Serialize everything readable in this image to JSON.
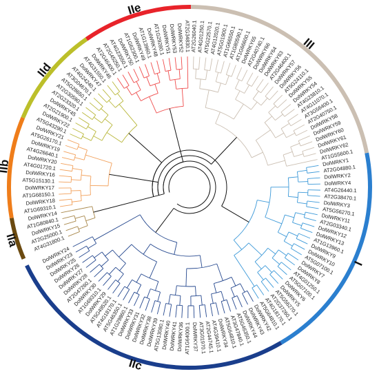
{
  "tree": {
    "groups": [
      {
        "id": "IIa",
        "label": "IIa",
        "arc_color": "#6b4a10",
        "branch_color": "#a8874a"
      },
      {
        "id": "IIb",
        "label": "IIb",
        "arc_color": "#ef7d1a",
        "branch_color": "#f2a05a"
      },
      {
        "id": "IId",
        "label": "IId",
        "arc_color": "#bcbf2a",
        "branch_color": "#b9b73a"
      },
      {
        "id": "IIe",
        "label": "IIe",
        "arc_color": "#e8232a",
        "branch_color": "#ef4a4a"
      },
      {
        "id": "III",
        "label": "III",
        "arc_color": "#cbbfb2",
        "branch_color": "#cbbfb2"
      },
      {
        "id": "I",
        "label": "I",
        "arc_color": "#2b7fcf",
        "branch_color": "#3a98d8"
      },
      {
        "id": "IIc",
        "label": "IIc",
        "arc_color": "#1a3e8c",
        "branch_color": "#24478e"
      }
    ],
    "leaves": [
      {
        "name": "AT4G31800.1",
        "group": "IIa"
      },
      {
        "name": "AT2G25000.1",
        "group": "IIa"
      },
      {
        "name": "DolWRKY15",
        "group": "IIa"
      },
      {
        "name": "AT1G80840.1",
        "group": "IIa"
      },
      {
        "name": "DolWRKY14",
        "group": "IIa"
      },
      {
        "name": "AT1G69310.1",
        "group": "IIb"
      },
      {
        "name": "DolWRKY18",
        "group": "IIb"
      },
      {
        "name": "AT1G68150.1",
        "group": "IIb"
      },
      {
        "name": "DolWRKY17",
        "group": "IIb"
      },
      {
        "name": "AT5G15130.1",
        "group": "IIb"
      },
      {
        "name": "DolWRKY16",
        "group": "IIb"
      },
      {
        "name": "AT4G01720.1",
        "group": "IIb"
      },
      {
        "name": "DolWRKY20",
        "group": "IIb"
      },
      {
        "name": "AT4G26640.1",
        "group": "IIb"
      },
      {
        "name": "DolWRKY19",
        "group": "IIb"
      },
      {
        "name": "AT5G26170.1",
        "group": "IIb"
      },
      {
        "name": "DolWRKY21",
        "group": "IIb"
      },
      {
        "name": "AT5G43290.1",
        "group": "IId"
      },
      {
        "name": "DolWRKY22",
        "group": "IId"
      },
      {
        "name": "AT2G21900.1",
        "group": "IId"
      },
      {
        "name": "DolWRKY45",
        "group": "IId"
      },
      {
        "name": "AT2G23320.1",
        "group": "IId"
      },
      {
        "name": "AT2G30590.1",
        "group": "IId"
      },
      {
        "name": "AT5G28650.1",
        "group": "IId"
      },
      {
        "name": "AT3G04670.1",
        "group": "IId"
      },
      {
        "name": "AT4G24240.1",
        "group": "IId"
      },
      {
        "name": "DolWRKY47",
        "group": "IId"
      },
      {
        "name": "AT4G31550.1",
        "group": "IId"
      },
      {
        "name": "DolWRKY46",
        "group": "IId"
      },
      {
        "name": "AT2G46400.1",
        "group": "IIe"
      },
      {
        "name": "AT2G45250.1",
        "group": "IIe"
      },
      {
        "name": "AT4G23550.1",
        "group": "IIe"
      },
      {
        "name": "DolWRKY50",
        "group": "IIe"
      },
      {
        "name": "AT1G62300.1",
        "group": "IIe"
      },
      {
        "name": "DolWRKY49",
        "group": "IIe"
      },
      {
        "name": "AT1G13960.1",
        "group": "IIe"
      },
      {
        "name": "DolWRKY48",
        "group": "IIe"
      },
      {
        "name": "AT1G29280.1",
        "group": "IIe"
      },
      {
        "name": "DolWRKY51",
        "group": "IIe"
      },
      {
        "name": "DolWRKY53",
        "group": "IIe"
      },
      {
        "name": "DolWRKY52",
        "group": "IIe"
      },
      {
        "name": "AT2G34830.1",
        "group": "IIe"
      },
      {
        "name": "AT2G26040.1",
        "group": "III"
      },
      {
        "name": "AT4G01250.1",
        "group": "III"
      },
      {
        "name": "AT5G22570.1",
        "group": "III"
      },
      {
        "name": "AT4G12020.1",
        "group": "III"
      },
      {
        "name": "AT5G01900.1",
        "group": "III"
      },
      {
        "name": "AT1G66550.1",
        "group": "III"
      },
      {
        "name": "AT1G80590.1",
        "group": "III"
      },
      {
        "name": "AT1G66600.1",
        "group": "III"
      },
      {
        "name": "DolWRKY65",
        "group": "III"
      },
      {
        "name": "AT2G40740.1",
        "group": "III"
      },
      {
        "name": "DolWRKY66",
        "group": "III"
      },
      {
        "name": "DolWRKY64",
        "group": "III"
      },
      {
        "name": "DolWRKY63",
        "group": "III"
      },
      {
        "name": "AT2G46400.1",
        "group": "III"
      },
      {
        "name": "DolWRKY57",
        "group": "III"
      },
      {
        "name": "DolWRKY56",
        "group": "III"
      },
      {
        "name": "AT5G24110.1",
        "group": "III"
      },
      {
        "name": "DolWRKY55",
        "group": "III"
      },
      {
        "name": "DolWRKY54",
        "group": "III"
      },
      {
        "name": "AT4G23810.1",
        "group": "III"
      },
      {
        "name": "AT4G11070.1",
        "group": "III"
      },
      {
        "name": "AT3G56400.1",
        "group": "III"
      },
      {
        "name": "AT2G40750.1",
        "group": "III"
      },
      {
        "name": "DolWRKY58",
        "group": "III"
      },
      {
        "name": "DolWRKY59",
        "group": "III"
      },
      {
        "name": "DolWRKY60",
        "group": "III"
      },
      {
        "name": "DolWRKY61",
        "group": "III"
      },
      {
        "name": "DolWRKY62",
        "group": "III"
      },
      {
        "name": "AT1G55600.1",
        "group": "III"
      },
      {
        "name": "DolWRKY1",
        "group": "I"
      },
      {
        "name": "AT2G04880.1",
        "group": "I"
      },
      {
        "name": "DolWRKY2",
        "group": "I"
      },
      {
        "name": "DolWRKY4",
        "group": "I"
      },
      {
        "name": "AT4G26440.1",
        "group": "I"
      },
      {
        "name": "AT2G38470.1",
        "group": "I"
      },
      {
        "name": "DolWRKY3",
        "group": "I"
      },
      {
        "name": "AT5G56270.1",
        "group": "I"
      },
      {
        "name": "DolWRKY11",
        "group": "I"
      },
      {
        "name": "AT2G03340.1",
        "group": "I"
      },
      {
        "name": "DolWRKY12",
        "group": "I"
      },
      {
        "name": "DolWRKY13",
        "group": "I"
      },
      {
        "name": "AT1G13960.1",
        "group": "I"
      },
      {
        "name": "DolWRKY9",
        "group": "I"
      },
      {
        "name": "DolWRKY10",
        "group": "I"
      },
      {
        "name": "AT5G07100.1",
        "group": "I"
      },
      {
        "name": "DolWRKY7",
        "group": "I"
      },
      {
        "name": "DolWRKY8",
        "group": "I"
      },
      {
        "name": "AT4G01250.1",
        "group": "I"
      },
      {
        "name": "AT5G07100.1",
        "group": "I"
      },
      {
        "name": "DolWRKY6",
        "group": "I"
      },
      {
        "name": "DolWRKY5",
        "group": "I"
      },
      {
        "name": "AT5G56270.1",
        "group": "I"
      },
      {
        "name": "AT2G37260.1",
        "group": "I"
      },
      {
        "name": "AT4G18170.1",
        "group": "I"
      },
      {
        "name": "AT5G64810.1",
        "group": "I"
      },
      {
        "name": "DolWRKY42",
        "group": "IIc"
      },
      {
        "name": "DolWRKY43",
        "group": "IIc"
      },
      {
        "name": "DolWRKY44",
        "group": "IIc"
      },
      {
        "name": "AT5G46350.1",
        "group": "IIc"
      },
      {
        "name": "AT3G47840.1",
        "group": "IIc"
      },
      {
        "name": "AT5G64810.1",
        "group": "IIc"
      },
      {
        "name": "DolWRKY34",
        "group": "IIc"
      },
      {
        "name": "AT4G39410.1",
        "group": "IIc"
      },
      {
        "name": "AT2G44745.1",
        "group": "IIc"
      },
      {
        "name": "AT3G01970.1",
        "group": "IIc"
      },
      {
        "name": "DolWRKY37",
        "group": "IIc"
      },
      {
        "name": "AT1G64000.1",
        "group": "IIc"
      },
      {
        "name": "DolWRKY36",
        "group": "IIc"
      },
      {
        "name": "DolWRKY41",
        "group": "IIc"
      },
      {
        "name": "DolWRKY40",
        "group": "IIc"
      },
      {
        "name": "AT5G13080.1",
        "group": "IIc"
      },
      {
        "name": "DolWRKY39",
        "group": "IIc"
      },
      {
        "name": "DolWRKY38",
        "group": "IIc"
      },
      {
        "name": "DolWRKY32",
        "group": "IIc"
      },
      {
        "name": "DolWRKY31",
        "group": "IIc"
      },
      {
        "name": "DolWRKY33",
        "group": "IIc"
      },
      {
        "name": "AT1G29860.1",
        "group": "IIc"
      },
      {
        "name": "AT5G46350.1",
        "group": "IIc"
      },
      {
        "name": "AT4G18170.1",
        "group": "IIc"
      },
      {
        "name": "AT5G49520.1",
        "group": "IIc"
      },
      {
        "name": "DolWRKY29",
        "group": "IIc"
      },
      {
        "name": "AT1G69310.1",
        "group": "IIc"
      },
      {
        "name": "DolWRKY30",
        "group": "IIc"
      },
      {
        "name": "AT2G47260.1",
        "group": "IIc"
      },
      {
        "name": "DolWRKY28",
        "group": "IIc"
      },
      {
        "name": "DolWRKY27",
        "group": "IIc"
      },
      {
        "name": "DolWRKY26",
        "group": "IIc"
      },
      {
        "name": "DolWRKY25",
        "group": "IIc"
      },
      {
        "name": "DolWRKY23",
        "group": "IIc"
      },
      {
        "name": "DolWRKY24",
        "group": "IIc"
      }
    ]
  }
}
